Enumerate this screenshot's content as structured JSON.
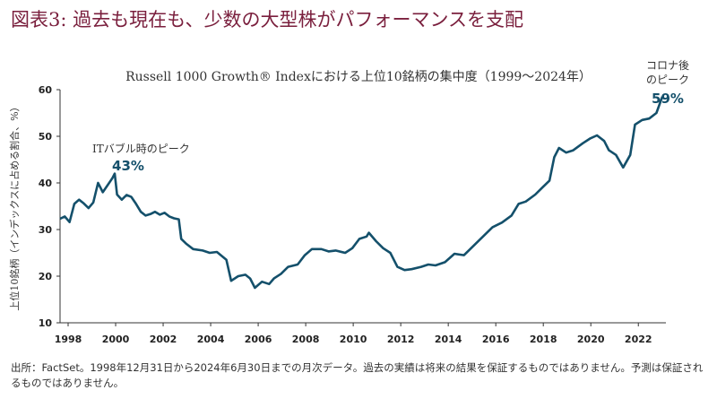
{
  "figure_title": "図表3: 過去も現在も、少数の大型株がパフォーマンスを支配",
  "footnote": "出所：FactSet。1998年12月31日から2024年6月30日までの月次データ。過去の実績は将来の結果を保証するものではありません。予測は保証されるものではありません。",
  "colors": {
    "line": "#14506b",
    "title": "#7a1f3d",
    "axis": "#333333"
  },
  "chart_data": {
    "type": "line",
    "title": "Russell 1000 Growth® Indexにおける上位10銘柄の集中度（1999〜2024年）",
    "xlabel": "",
    "ylabel": "上位10銘柄（インデックスに占める割合、%）",
    "xlim": [
      1998,
      2023.5
    ],
    "ylim": [
      10,
      60
    ],
    "x_ticks": [
      "1998",
      "2000",
      "2002",
      "2004",
      "2006",
      "2008",
      "2010",
      "2012",
      "2014",
      "2016",
      "2018",
      "2020",
      "2022"
    ],
    "y_ticks": [
      "10",
      "20",
      "30",
      "40",
      "50",
      "60"
    ],
    "grid": false,
    "series": [
      {
        "name": "",
        "points": [
          [
            1998.0,
            32.3
          ],
          [
            1998.2,
            32.8
          ],
          [
            1998.4,
            31.6
          ],
          [
            1998.6,
            35.5
          ],
          [
            1998.8,
            36.4
          ],
          [
            1999.0,
            35.6
          ],
          [
            1999.2,
            34.6
          ],
          [
            1999.4,
            35.8
          ],
          [
            1999.6,
            40.0
          ],
          [
            1999.8,
            38.0
          ],
          [
            2000.0,
            39.5
          ],
          [
            2000.2,
            41.0
          ],
          [
            2000.3,
            42.0
          ],
          [
            2000.4,
            37.5
          ],
          [
            2000.6,
            36.4
          ],
          [
            2000.8,
            37.4
          ],
          [
            2001.0,
            37.0
          ],
          [
            2001.2,
            35.5
          ],
          [
            2001.4,
            33.8
          ],
          [
            2001.6,
            33.0
          ],
          [
            2001.8,
            33.3
          ],
          [
            2002.0,
            33.8
          ],
          [
            2002.2,
            33.2
          ],
          [
            2002.4,
            33.6
          ],
          [
            2002.6,
            32.8
          ],
          [
            2002.8,
            32.4
          ],
          [
            2003.0,
            32.2
          ],
          [
            2003.1,
            28.0
          ],
          [
            2003.3,
            27.0
          ],
          [
            2003.6,
            25.8
          ],
          [
            2004.0,
            25.5
          ],
          [
            2004.3,
            25.0
          ],
          [
            2004.6,
            25.2
          ],
          [
            2005.0,
            23.5
          ],
          [
            2005.2,
            19.0
          ],
          [
            2005.5,
            20.0
          ],
          [
            2005.8,
            20.3
          ],
          [
            2006.0,
            19.5
          ],
          [
            2006.2,
            17.5
          ],
          [
            2006.5,
            18.8
          ],
          [
            2006.8,
            18.3
          ],
          [
            2007.0,
            19.5
          ],
          [
            2007.3,
            20.5
          ],
          [
            2007.6,
            22.0
          ],
          [
            2008.0,
            22.5
          ],
          [
            2008.3,
            24.5
          ],
          [
            2008.6,
            25.8
          ],
          [
            2009.0,
            25.8
          ],
          [
            2009.3,
            25.3
          ],
          [
            2009.6,
            25.5
          ],
          [
            2010.0,
            25.0
          ],
          [
            2010.3,
            26.0
          ],
          [
            2010.6,
            28.0
          ],
          [
            2010.9,
            28.5
          ],
          [
            2011.0,
            29.3
          ],
          [
            2011.3,
            27.5
          ],
          [
            2011.6,
            26.0
          ],
          [
            2011.9,
            25.0
          ],
          [
            2012.2,
            22.0
          ],
          [
            2012.5,
            21.3
          ],
          [
            2012.8,
            21.5
          ],
          [
            2013.2,
            22.0
          ],
          [
            2013.5,
            22.5
          ],
          [
            2013.8,
            22.3
          ],
          [
            2014.2,
            23.0
          ],
          [
            2014.6,
            24.8
          ],
          [
            2015.0,
            24.5
          ],
          [
            2015.4,
            26.5
          ],
          [
            2015.8,
            28.5
          ],
          [
            2016.2,
            30.5
          ],
          [
            2016.6,
            31.5
          ],
          [
            2017.0,
            33.0
          ],
          [
            2017.3,
            35.5
          ],
          [
            2017.6,
            36.0
          ],
          [
            2018.0,
            37.5
          ],
          [
            2018.3,
            39.0
          ],
          [
            2018.6,
            40.5
          ],
          [
            2018.8,
            45.5
          ],
          [
            2019.0,
            47.5
          ],
          [
            2019.3,
            46.5
          ],
          [
            2019.6,
            47.0
          ],
          [
            2020.0,
            48.5
          ],
          [
            2020.3,
            49.5
          ],
          [
            2020.6,
            50.2
          ],
          [
            2020.9,
            49.0
          ],
          [
            2021.1,
            47.0
          ],
          [
            2021.4,
            46.0
          ],
          [
            2021.7,
            43.3
          ],
          [
            2022.0,
            46.0
          ],
          [
            2022.2,
            52.5
          ],
          [
            2022.5,
            53.5
          ],
          [
            2022.8,
            53.8
          ],
          [
            2023.1,
            55.0
          ],
          [
            2023.35,
            58.5
          ]
        ]
      }
    ],
    "annotations": [
      {
        "label": "ITバブル時のピーク",
        "value": "43%"
      },
      {
        "label": "コロナ後のピーク",
        "value": "59%"
      }
    ]
  }
}
